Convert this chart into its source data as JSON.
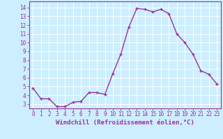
{
  "x": [
    0,
    1,
    2,
    3,
    4,
    5,
    6,
    7,
    8,
    9,
    10,
    11,
    12,
    13,
    14,
    15,
    16,
    17,
    18,
    19,
    20,
    21,
    22,
    23
  ],
  "y": [
    4.8,
    3.6,
    3.6,
    2.7,
    2.7,
    3.2,
    3.3,
    4.3,
    4.3,
    4.1,
    6.5,
    8.7,
    11.8,
    13.9,
    13.8,
    13.5,
    13.8,
    13.3,
    11.0,
    10.0,
    8.7,
    6.8,
    6.4,
    5.3
  ],
  "line_color": "#993399",
  "marker": "+",
  "marker_size": 3,
  "linewidth": 1.0,
  "background_color": "#cceeff",
  "grid_color": "#ffffff",
  "xlabel": "Windchill (Refroidissement éolien,°C)",
  "xlim": [
    -0.5,
    23.5
  ],
  "ylim": [
    2.5,
    14.7
  ],
  "yticks": [
    3,
    4,
    5,
    6,
    7,
    8,
    9,
    10,
    11,
    12,
    13,
    14
  ],
  "xlabel_fontsize": 6.5,
  "tick_fontsize": 5.5
}
